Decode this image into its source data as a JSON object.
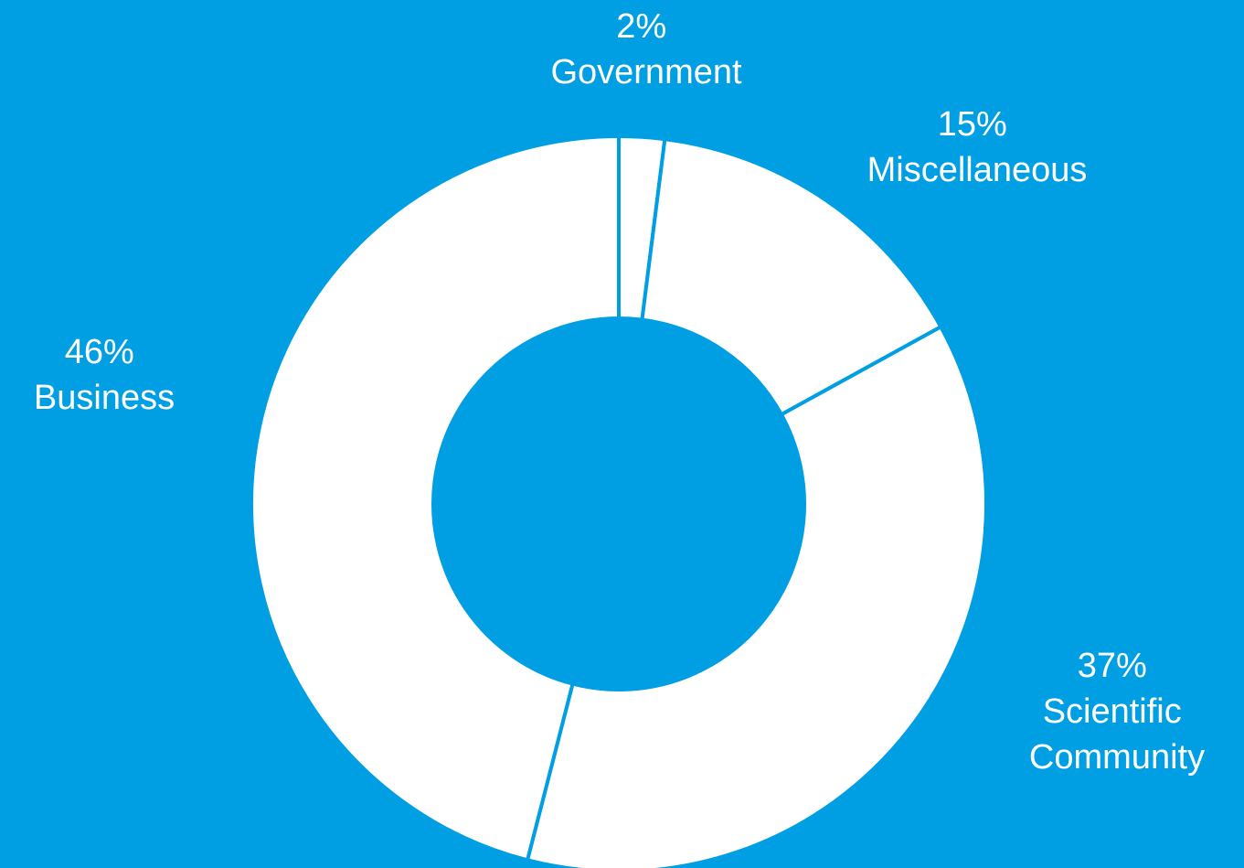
{
  "chart_data": {
    "type": "pie",
    "donut": true,
    "categories": [
      "Government",
      "Miscellaneous",
      "Scientific Community",
      "Business"
    ],
    "values": [
      2,
      15,
      37,
      46
    ],
    "labels": [
      {
        "value": "2%",
        "name": [
          "Government"
        ]
      },
      {
        "value": "15%",
        "name": [
          "Miscellaneous"
        ]
      },
      {
        "value": "37%",
        "name": [
          "Scientific",
          "Community"
        ]
      },
      {
        "value": "46%",
        "name": [
          "Business"
        ]
      }
    ],
    "start_angle": "top, clockwise",
    "colors": {
      "background": "#009fe3",
      "slice": "#ffffff"
    }
  }
}
